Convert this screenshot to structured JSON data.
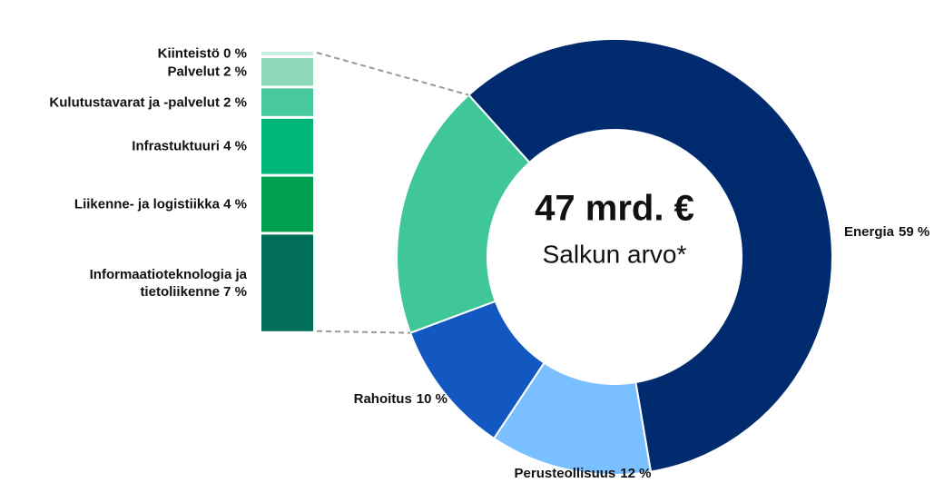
{
  "chart_data": {
    "type": "donut",
    "center_value": "47 mrd. €",
    "center_label": "Salkun arvo*",
    "categories": [
      "Energia",
      "Perusteollisuus",
      "Rahoitus"
    ],
    "values": [
      59,
      12,
      10
    ],
    "value_labels": [
      "59 %",
      "12 %",
      "10 %"
    ],
    "colors": [
      "#002b6e",
      "#7abfff",
      "#1258c0"
    ],
    "breakout": {
      "slice_color": "#3fc79a",
      "categories": [
        "Kiinteistö",
        "Palvelut",
        "Kulutustavarat ja -palvelut",
        "Infrastuktuuri",
        "Liikenne- ja logistiikka",
        "Informaatioteknologia ja tietoliikenne"
      ],
      "values": [
        0,
        2,
        2,
        4,
        4,
        7
      ],
      "value_labels": [
        "0 %",
        "2 %",
        "2 %",
        "4 %",
        "4 %",
        "7 %"
      ],
      "colors": [
        "#c8eee0",
        "#8fd9bb",
        "#48c99b",
        "#00b67a",
        "#00a050",
        "#006e5a"
      ]
    }
  }
}
